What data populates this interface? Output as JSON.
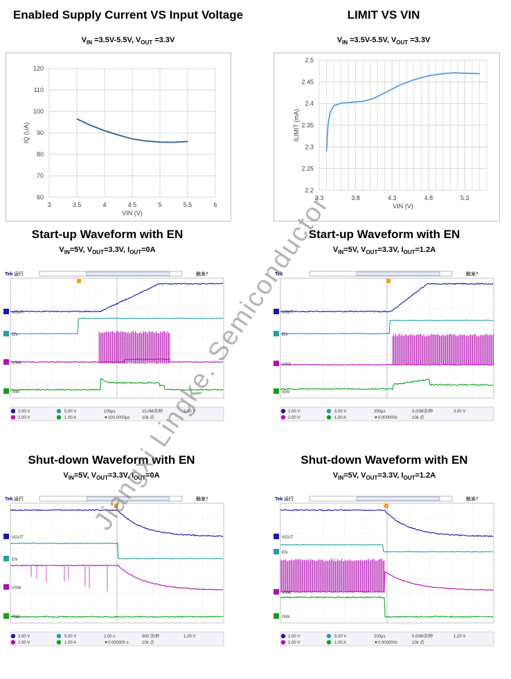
{
  "charts": [
    {
      "title": "Enabled Supply Current VS Input Voltage",
      "cond": [
        "V",
        "IN",
        " =3.5V-5.5V, V",
        "OUT",
        " =3.3V"
      ],
      "chart_data": {
        "type": "line",
        "xlabel": "VIN (V)",
        "ylabel": "IQ (UA)",
        "xlim": [
          3,
          6
        ],
        "ylim": [
          60,
          120
        ],
        "xticks": [
          "3",
          "3.5",
          "4",
          "4.5",
          "5",
          "5.5",
          "6"
        ],
        "yticks": [
          "60",
          "70",
          "80",
          "90",
          "100",
          "110",
          "120"
        ],
        "grid": true,
        "series": [
          {
            "x": [
              3.5,
              3.75,
              4.0,
              4.25,
              4.5,
              4.75,
              5.0,
              5.25,
              5.5
            ],
            "y": [
              96.5,
              93.5,
              91.0,
              89.0,
              87.2,
              86.2,
              85.7,
              85.6,
              86.0
            ]
          }
        ]
      }
    },
    {
      "title": "LIMIT VS VIN",
      "cond": [
        "V",
        "IN",
        " =3.5V-5.5V, V",
        "OUT",
        " =3.3V"
      ],
      "chart_data": {
        "type": "line",
        "xlabel": "VIN (V)",
        "ylabel": "ILIMIT (mA)",
        "xlim": [
          3.3,
          5.6
        ],
        "ylim": [
          2.2,
          2.5
        ],
        "xticks": [
          "3.3",
          "3.8",
          "4.3",
          "4.8",
          "5.3"
        ],
        "xtick_values": [
          3.3,
          3.8,
          4.3,
          4.8,
          5.3
        ],
        "yticks": [
          "2.2",
          "2.25",
          "2.3",
          "2.35",
          "2.4",
          "2.45",
          "2.5"
        ],
        "grid": true,
        "series": [
          {
            "x": [
              3.4,
              3.42,
              3.45,
              3.5,
              3.6,
              3.75,
              3.9,
              4.05,
              4.2,
              4.4,
              4.6,
              4.8,
              5.0,
              5.15,
              5.3,
              5.5
            ],
            "y": [
              2.29,
              2.35,
              2.38,
              2.395,
              2.401,
              2.403,
              2.405,
              2.412,
              2.425,
              2.442,
              2.455,
              2.464,
              2.469,
              2.471,
              2.47,
              2.469
            ]
          }
        ]
      }
    }
  ],
  "waveforms": [
    {
      "title": "Start-up Waveform with EN",
      "cond": [
        "V",
        "IN",
        "=5V, V",
        "OUT",
        "=3.3V, I",
        "OUT",
        "=0A"
      ],
      "header": {
        "brand": "Tek",
        "mode": "运行",
        "trigger": "触发?"
      },
      "labels": [
        "VOUT",
        "EN",
        "VSW",
        "ISW"
      ],
      "bar": {
        "r1": [
          "2.00 V",
          "5.00 V",
          "100μs",
          "10.0M次/秒",
          "2.00 V"
        ],
        "r2": [
          "2.00 V",
          "1.00 A",
          "▼100.0000μs",
          "10k 点"
        ]
      }
    },
    {
      "title": "Start-up Waveform with EN",
      "cond": [
        "V",
        "IN",
        "=5V, V",
        "OUT",
        "=3.3V, I",
        "OUT",
        "=1.2A"
      ],
      "header": {
        "brand": "Tek",
        "mode": "",
        "trigger": "触发?"
      },
      "labels": [
        "VOUT",
        "EN",
        "VSW",
        "ISW"
      ],
      "bar": {
        "r1": [
          "2.00 V",
          "5.00 V",
          "200μs",
          "5.00M次/秒",
          "3.00 V"
        ],
        "r2": [
          "2.00 V",
          "1.00 A",
          "▼0.000000s",
          "10k 点"
        ]
      }
    },
    {
      "title": "Shut-down Waveform with EN",
      "cond": [
        "V",
        "IN",
        "=5V, V",
        "OUT",
        "=3.3V, I",
        "OUT",
        "=0A"
      ],
      "header": {
        "brand": "Tek",
        "mode": "运行",
        "trigger": "触发?"
      },
      "labels": [
        "VOUT",
        "EN",
        "VSW",
        "ISW"
      ],
      "bar": {
        "r1": [
          "2.00 V",
          "5.00 V",
          "2.00 s",
          "500 次/秒",
          "1.20 V"
        ],
        "r2": [
          "2.00 V",
          "1.00 A",
          "▼0.000000 s",
          "10k 点"
        ]
      }
    },
    {
      "title": "Shut-down Waveform with EN",
      "cond": [
        "V",
        "IN",
        "=5V, V",
        "OUT",
        "=3.3V, I",
        "OUT",
        "=1.2A"
      ],
      "header": {
        "brand": "Tek",
        "mode": "运行",
        "trigger": "触发?"
      },
      "labels": [
        "VOUT",
        "EN",
        "VSW",
        "ISW"
      ],
      "bar": {
        "r1": [
          "2.00 V",
          "5.00 V",
          "200μs",
          "5.00M次/秒",
          "1.20 V"
        ],
        "r2": [
          "2.00 V",
          "1.00 A",
          "▼0.000000s",
          "10k 点"
        ]
      }
    }
  ],
  "watermark": "Jiangxi Lingke. Semiconductor",
  "colors": {
    "vout": "#1a1aa0",
    "en": "#20a0a8",
    "vsw": "#b010b0",
    "isw": "#10a020",
    "curve1": "#2a5d8f",
    "curve2": "#5b9bd5"
  }
}
